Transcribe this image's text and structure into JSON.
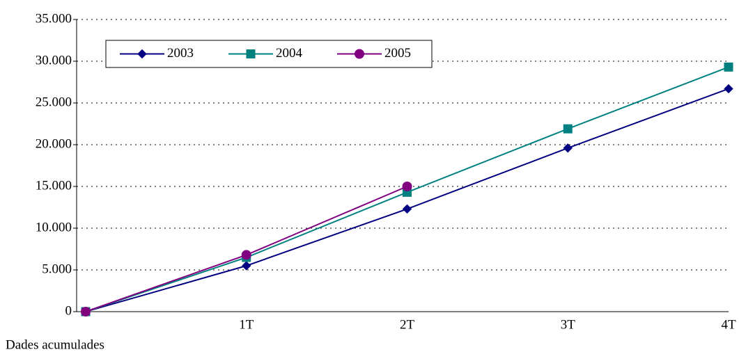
{
  "chart_data": {
    "type": "line",
    "x_label": "Dades acumulades",
    "categories": [
      null,
      "1T",
      "2T",
      "3T",
      "4T"
    ],
    "series": [
      {
        "name": "2003",
        "color": "#000080",
        "marker": "diamond",
        "values": [
          0,
          5500,
          12300,
          19600,
          26700
        ]
      },
      {
        "name": "2004",
        "color": "#008080",
        "marker": "square",
        "values": [
          0,
          6500,
          14300,
          21900,
          29300
        ]
      },
      {
        "name": "2005",
        "color": "#800080",
        "marker": "circle",
        "values": [
          0,
          6800,
          15000,
          null,
          null
        ]
      }
    ],
    "ylim": [
      0,
      35000
    ],
    "yticks": [
      0,
      {
        "value": 5000,
        "label": "5.000"
      },
      {
        "value": 10000,
        "label": "10.000"
      },
      {
        "value": 15000,
        "label": "15.000"
      },
      {
        "value": 20000,
        "label": "20.000"
      },
      {
        "value": 25000,
        "label": "25.000"
      },
      {
        "value": 30000,
        "label": "30.000"
      },
      {
        "value": 35000,
        "label": "35.000"
      }
    ],
    "grid": true,
    "legend": "upper left"
  }
}
